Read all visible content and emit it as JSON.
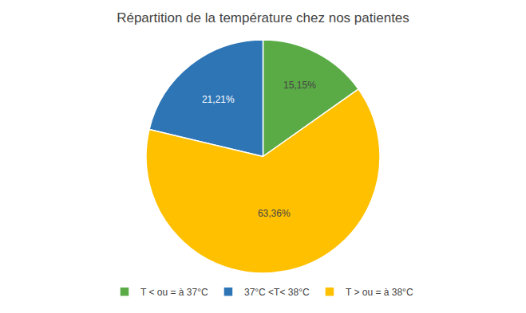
{
  "chart_data": {
    "type": "pie",
    "title": "Répartition de la température chez nos patientes",
    "categories": [
      "T < ou = à 37°C",
      "37°C <T< 38°C",
      "T > ou = à 38°C"
    ],
    "values": [
      15.15,
      21.21,
      63.36
    ],
    "value_labels": [
      "15,15%",
      "21,21%",
      "63,36%"
    ],
    "colors": [
      "#5aab46",
      "#2e75b6",
      "#ffc000"
    ],
    "data_labels": true,
    "legend": "bottom"
  }
}
